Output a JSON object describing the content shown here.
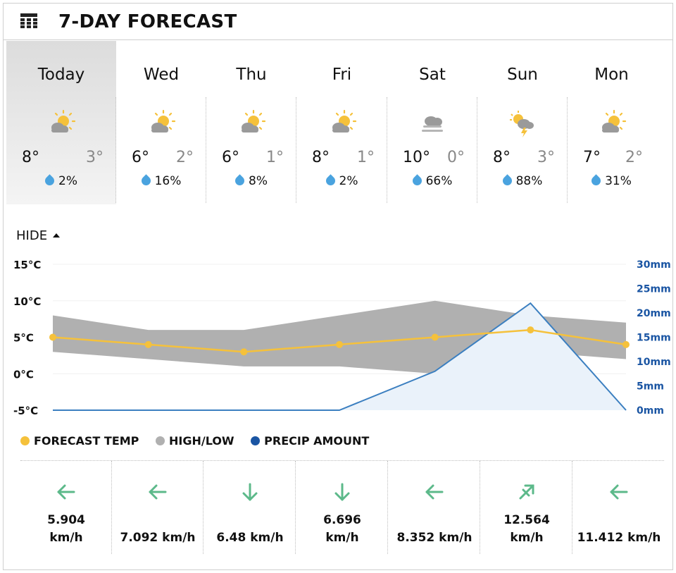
{
  "widget": {
    "title": "7-DAY FORECAST"
  },
  "days": [
    {
      "name": "Today",
      "hi": "8°",
      "lo": "3°",
      "precip": "2%",
      "icon": "partly-sunny-icon"
    },
    {
      "name": "Wed",
      "hi": "6°",
      "lo": "2°",
      "precip": "16%",
      "icon": "partly-sunny-icon"
    },
    {
      "name": "Thu",
      "hi": "6°",
      "lo": "1°",
      "precip": "8%",
      "icon": "partly-sunny-icon"
    },
    {
      "name": "Fri",
      "hi": "8°",
      "lo": "1°",
      "precip": "2%",
      "icon": "partly-sunny-icon"
    },
    {
      "name": "Sat",
      "hi": "10°",
      "lo": "0°",
      "precip": "66%",
      "icon": "fog-cloud-icon"
    },
    {
      "name": "Sun",
      "hi": "8°",
      "lo": "3°",
      "precip": "88%",
      "icon": "thunder-sun-icon"
    },
    {
      "name": "Mon",
      "hi": "7°",
      "lo": "2°",
      "precip": "31%",
      "icon": "partly-sunny-icon"
    }
  ],
  "toggle": {
    "label": "HIDE"
  },
  "chart_data": {
    "type": "line",
    "categories": [
      "Today",
      "Wed",
      "Thu",
      "Fri",
      "Sat",
      "Sun",
      "Mon"
    ],
    "left_axis": {
      "ticks": [
        "15°C",
        "10°C",
        "5°C",
        "0°C",
        "-5°C"
      ],
      "range": [
        -5,
        15
      ]
    },
    "right_axis": {
      "ticks": [
        "30mm",
        "25mm",
        "20mm",
        "15mm",
        "10mm",
        "5mm",
        "0mm"
      ],
      "range": [
        0,
        30
      ]
    },
    "series": [
      {
        "name": "FORECAST TEMP",
        "type": "line",
        "values": [
          5,
          4,
          3,
          4,
          5,
          6,
          4
        ],
        "color": "#f5c13b"
      },
      {
        "name": "HIGH/LOW",
        "type": "range",
        "high": [
          8,
          6,
          6,
          8,
          10,
          8,
          7
        ],
        "low": [
          3,
          2,
          1,
          1,
          0,
          3,
          2
        ],
        "color": "#b0b0b0"
      },
      {
        "name": "PRECIP AMOUNT",
        "type": "area",
        "values": [
          0,
          0,
          0,
          0,
          8,
          22,
          0
        ],
        "color": "#1a55a3"
      }
    ],
    "grid": true,
    "legend": "bottom-left"
  },
  "legend": [
    {
      "label": "FORECAST TEMP",
      "color": "#f5c13b"
    },
    {
      "label": "HIGH/LOW",
      "color": "#b0b0b0"
    },
    {
      "label": "PRECIP AMOUNT",
      "color": "#1a55a3"
    }
  ],
  "wind": [
    {
      "line1": "5.904",
      "line2": "km/h",
      "direction": "west"
    },
    {
      "line1": "",
      "line2": "7.092 km/h",
      "direction": "west"
    },
    {
      "line1": "",
      "line2": "6.48 km/h",
      "direction": "south"
    },
    {
      "line1": "6.696",
      "line2": "km/h",
      "direction": "south"
    },
    {
      "line1": "",
      "line2": "8.352 km/h",
      "direction": "west"
    },
    {
      "line1": "12.564",
      "line2": "km/h",
      "direction": "north-east"
    },
    {
      "line1": "",
      "line2": "11.412 km/h",
      "direction": "west"
    }
  ],
  "colors": {
    "accent_green": "#5cb98a",
    "drop_blue": "#4aa3df",
    "axis_blue": "#1a55a3"
  }
}
